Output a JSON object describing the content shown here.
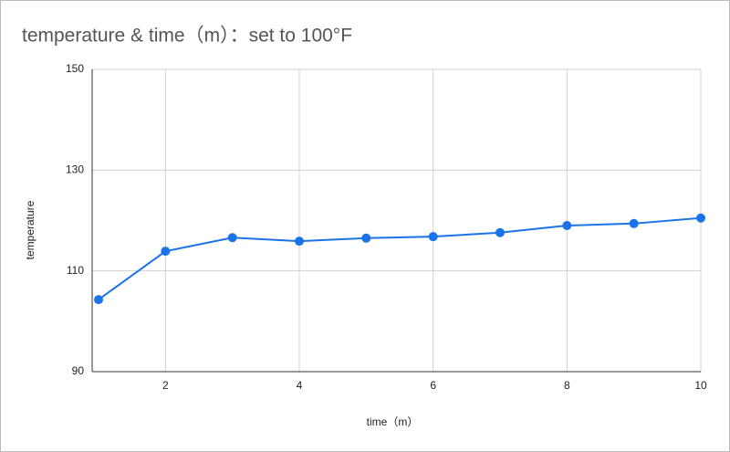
{
  "chart_data": {
    "type": "line",
    "title": "temperature & time（m）：set to 100°F",
    "x_label": "time（m）",
    "y_label": "temperature",
    "x": [
      1,
      2,
      3,
      4,
      5,
      6,
      7,
      8,
      9,
      10
    ],
    "series": [
      {
        "name": "temperature",
        "color": "#1a73e8",
        "values": [
          104.3,
          113.9,
          116.6,
          115.9,
          116.5,
          116.8,
          117.6,
          119.0,
          119.4,
          120.5
        ]
      }
    ],
    "xlim": [
      1,
      10
    ],
    "xticks": [
      2,
      4,
      6,
      8,
      10
    ],
    "ylim": [
      90,
      150
    ],
    "yticks": [
      90,
      110,
      130,
      150
    ],
    "grid": true
  }
}
